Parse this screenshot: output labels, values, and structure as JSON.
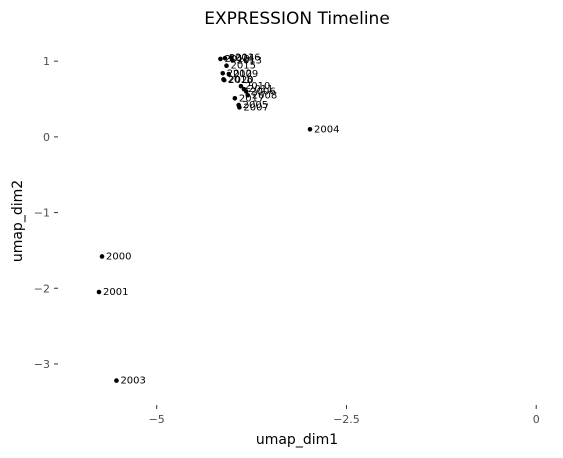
{
  "chart_data": {
    "type": "scatter",
    "title": "EXPRESSION Timeline",
    "xlabel": "umap_dim1",
    "ylabel": "umap_dim2",
    "xlim": [
      -6.3,
      0.05
    ],
    "ylim": [
      -3.45,
      1.28
    ],
    "xticks": [
      -5,
      -2.5,
      0
    ],
    "xtick_labels": [
      "−5",
      "−2.5",
      "0"
    ],
    "yticks": [
      1,
      0,
      -1,
      -2,
      -3
    ],
    "ytick_labels": [
      "1",
      "0",
      "−1",
      "−2",
      "−3"
    ],
    "grid": false,
    "points": [
      {
        "label": "2000",
        "x": -5.72,
        "y": -1.58
      },
      {
        "label": "2001",
        "x": -5.76,
        "y": -2.05
      },
      {
        "label": "2003",
        "x": -5.53,
        "y": -3.22
      },
      {
        "label": "2004",
        "x": -2.98,
        "y": 0.1
      },
      {
        "label": "2005",
        "x": -3.92,
        "y": 0.42
      },
      {
        "label": "2006",
        "x": -3.82,
        "y": 0.6
      },
      {
        "label": "2007",
        "x": -3.91,
        "y": 0.39
      },
      {
        "label": "2008",
        "x": -3.8,
        "y": 0.55
      },
      {
        "label": "2009",
        "x": -4.05,
        "y": 0.83
      },
      {
        "label": "2010",
        "x": -3.89,
        "y": 0.67
      },
      {
        "label": "2011",
        "x": -3.85,
        "y": 0.63
      },
      {
        "label": "2012",
        "x": -4.13,
        "y": 0.84
      },
      {
        "label": "2013",
        "x": -4.0,
        "y": 1.01
      },
      {
        "label": "2014",
        "x": -4.1,
        "y": 1.04
      },
      {
        "label": "2015",
        "x": -4.08,
        "y": 0.94
      },
      {
        "label": "2016",
        "x": -4.02,
        "y": 1.05
      },
      {
        "label": "2017",
        "x": -3.97,
        "y": 0.51
      },
      {
        "label": "2018",
        "x": -4.12,
        "y": 0.76
      },
      {
        "label": "2019",
        "x": -4.16,
        "y": 1.03
      },
      {
        "label": "2020",
        "x": -4.11,
        "y": 0.75
      }
    ]
  }
}
